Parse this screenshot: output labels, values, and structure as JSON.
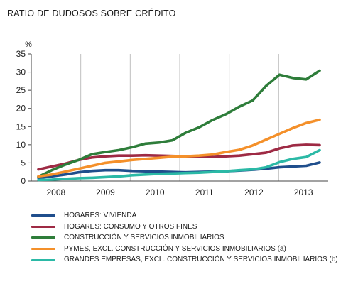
{
  "chart_data": {
    "type": "line",
    "title": "RATIO DE DUDOSOS SOBRE CRÉDITO",
    "ylabel": "%",
    "xlabel": "",
    "ylim": [
      0,
      35
    ],
    "yticks": [
      0,
      5,
      10,
      15,
      20,
      25,
      30,
      35
    ],
    "x_tick_labels": [
      "2008",
      "2009",
      "2010",
      "2011",
      "2012",
      "2013"
    ],
    "grid": "vertical lines at year boundaries",
    "legend_position": "bottom",
    "x": [
      "2007-Q4",
      "2008-Q1",
      "2008-Q2",
      "2008-Q3",
      "2008-Q4",
      "2009-Q1",
      "2009-Q2",
      "2009-Q3",
      "2009-Q4",
      "2010-Q1",
      "2010-Q2",
      "2010-Q3",
      "2010-Q4",
      "2011-Q1",
      "2011-Q2",
      "2011-Q3",
      "2011-Q4",
      "2012-Q1",
      "2012-Q2",
      "2012-Q3",
      "2012-Q4",
      "2013-Q1"
    ],
    "series": [
      {
        "name": "HOGARES: VIVIENDA",
        "color": "#1f4e8c",
        "values": [
          0.9,
          1.3,
          1.8,
          2.4,
          2.8,
          3.0,
          3.0,
          2.8,
          2.7,
          2.6,
          2.5,
          2.4,
          2.5,
          2.6,
          2.7,
          2.9,
          3.1,
          3.4,
          3.8,
          4.0,
          4.2,
          5.1
        ]
      },
      {
        "name": "HOGARES: CONSUMO Y OTROS FINES",
        "color": "#9e2a44",
        "values": [
          3.2,
          4.0,
          4.8,
          5.8,
          6.5,
          6.8,
          7.0,
          7.0,
          7.1,
          7.0,
          6.9,
          6.8,
          6.6,
          6.6,
          6.8,
          7.0,
          7.4,
          7.8,
          9.0,
          9.8,
          10.0,
          9.9
        ]
      },
      {
        "name": "CONSTRUCCIÓN Y SERVICIOS INMOBILIARIOS",
        "color": "#2e7d3a",
        "values": [
          1.2,
          3.0,
          4.5,
          5.8,
          7.4,
          8.0,
          8.5,
          9.3,
          10.3,
          10.6,
          11.2,
          13.3,
          14.8,
          16.8,
          18.4,
          20.5,
          22.2,
          26.2,
          29.3,
          28.4,
          28.0,
          30.4
        ]
      },
      {
        "name": "PYMES, EXCL. CONSTRUCCIÓN Y SERVICIOS INMOBILIARIOS (a)",
        "color": "#f4902a",
        "values": [
          1.3,
          1.8,
          2.6,
          3.4,
          4.2,
          5.0,
          5.4,
          5.8,
          6.1,
          6.4,
          6.7,
          6.8,
          7.0,
          7.3,
          8.0,
          8.6,
          9.8,
          11.4,
          13.0,
          14.6,
          16.0,
          16.9
        ]
      },
      {
        "name": "GRANDES EMPRESAS, EXCL. CONSTRUCCIÓN Y SERVICIOS INMOBILIARIOS (b)",
        "color": "#2bb9a6",
        "values": [
          0.3,
          0.4,
          0.6,
          0.8,
          0.9,
          1.1,
          1.3,
          1.6,
          1.8,
          2.0,
          2.1,
          2.2,
          2.3,
          2.5,
          2.7,
          3.0,
          3.2,
          3.8,
          5.2,
          6.1,
          6.6,
          8.5
        ]
      }
    ]
  }
}
